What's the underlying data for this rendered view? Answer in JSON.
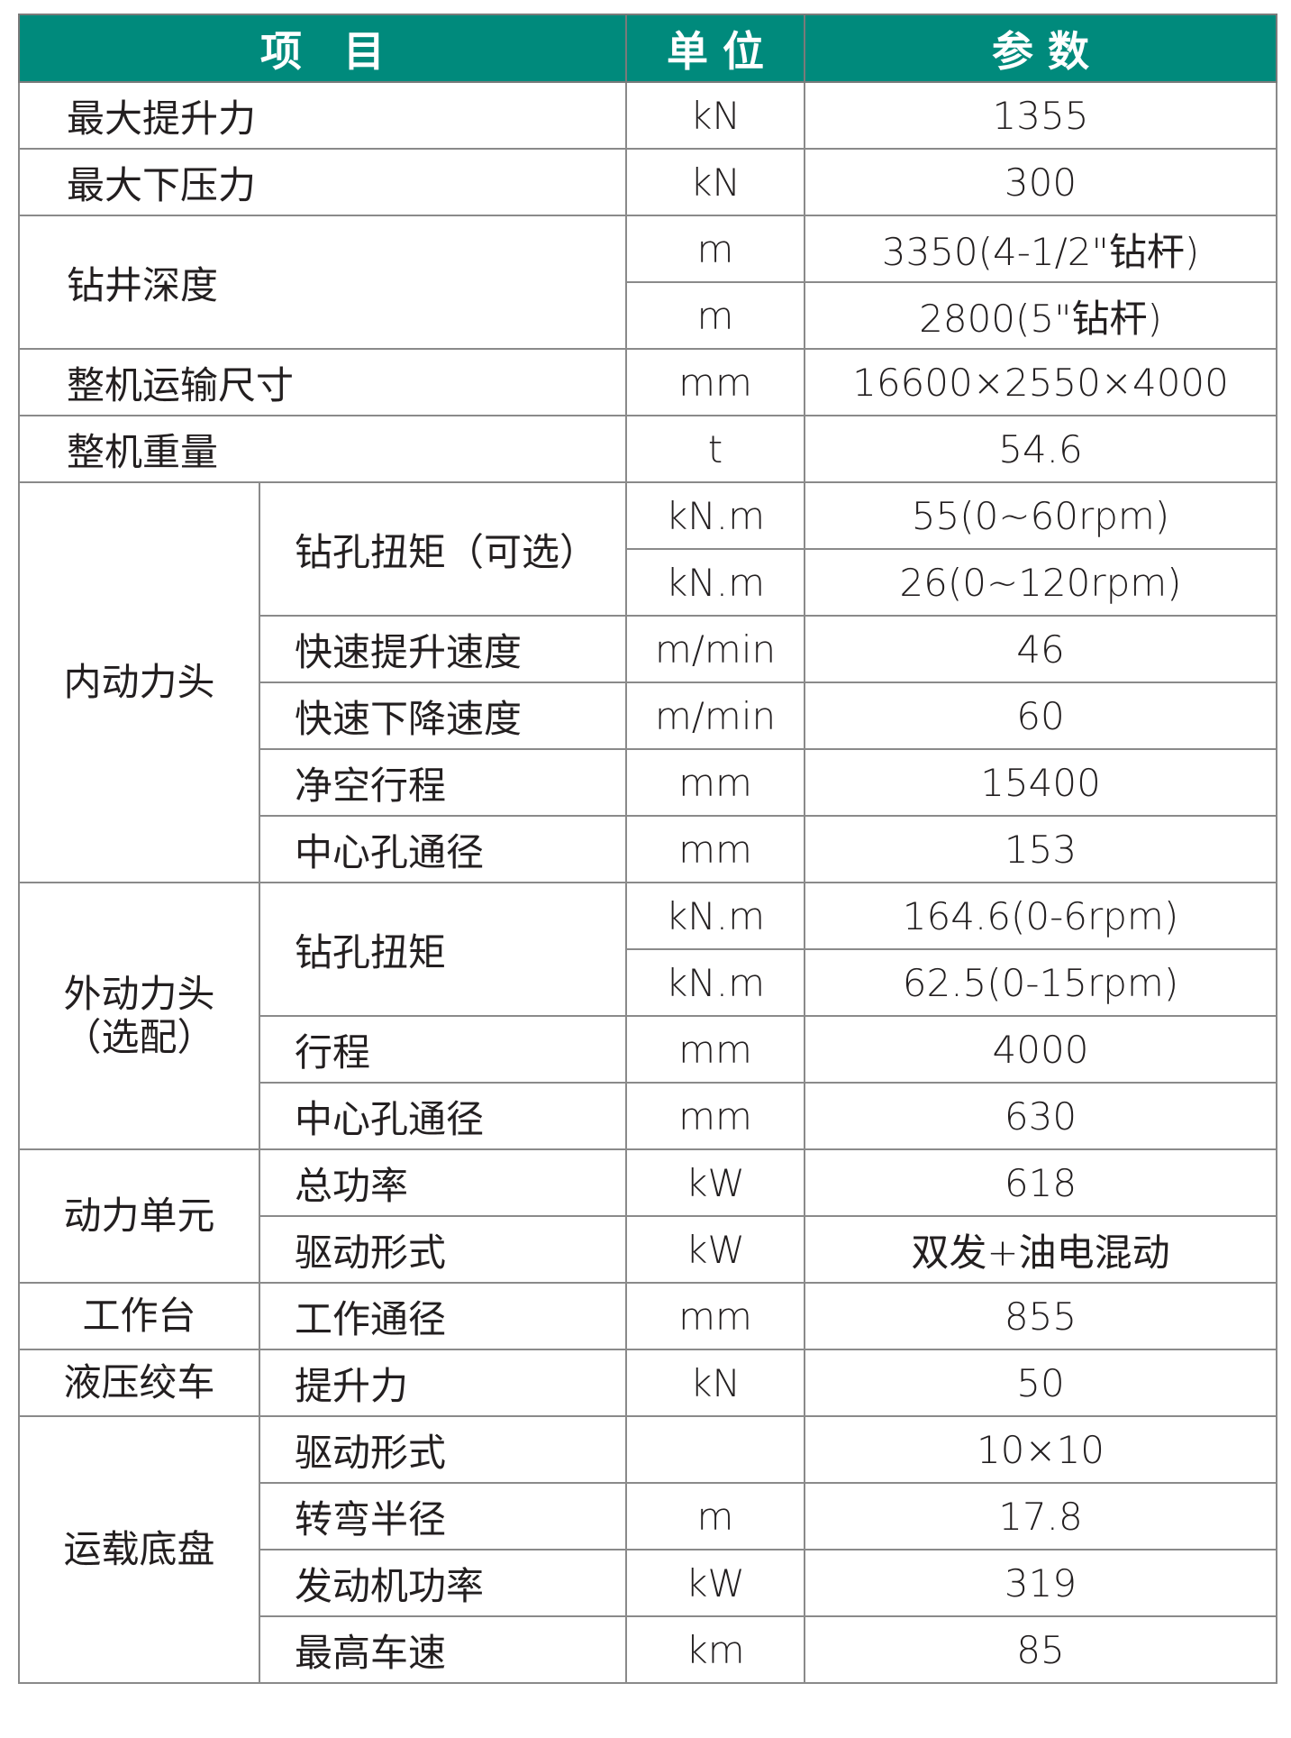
{
  "header": {
    "item": "项　目",
    "unit": "单 位",
    "value": "参 数"
  },
  "colors": {
    "header_bg": "#008a7c",
    "header_text": "#ffffff",
    "border": "#8a8a8a"
  },
  "rows": [
    {
      "item": "最大提升力",
      "entries": [
        {
          "unit": "kN",
          "value": "1355"
        }
      ]
    },
    {
      "item": "最大下压力",
      "entries": [
        {
          "unit": "kN",
          "value": "300"
        }
      ]
    },
    {
      "item": "钻井深度",
      "entries": [
        {
          "unit": "m",
          "value": "3350(4-1/2\"钻杆)"
        },
        {
          "unit": "m",
          "value": "2800(5\"钻杆)"
        }
      ]
    },
    {
      "item": "整机运输尺寸",
      "entries": [
        {
          "unit": "mm",
          "value": "16600×2550×4000"
        }
      ]
    },
    {
      "item": "整机重量",
      "entries": [
        {
          "unit": "t",
          "value": "54.6"
        }
      ]
    }
  ],
  "groups": [
    {
      "name": "内动力头",
      "subs": [
        {
          "item": "钻孔扭矩（可选）",
          "entries": [
            {
              "unit": "kN.m",
              "value": "55(0~60rpm)"
            },
            {
              "unit": "kN.m",
              "value": "26(0~120rpm)"
            }
          ]
        },
        {
          "item": "快速提升速度",
          "entries": [
            {
              "unit": "m/min",
              "value": "46"
            }
          ]
        },
        {
          "item": "快速下降速度",
          "entries": [
            {
              "unit": "m/min",
              "value": "60"
            }
          ]
        },
        {
          "item": "净空行程",
          "entries": [
            {
              "unit": "mm",
              "value": "15400"
            }
          ]
        },
        {
          "item": "中心孔通径",
          "entries": [
            {
              "unit": "mm",
              "value": "153"
            }
          ]
        }
      ]
    },
    {
      "name": "外动力头\n（选配）",
      "subs": [
        {
          "item": "钻孔扭矩",
          "entries": [
            {
              "unit": "kN.m",
              "value": "164.6(0-6rpm)"
            },
            {
              "unit": "kN.m",
              "value": "62.5(0-15rpm)"
            }
          ]
        },
        {
          "item": "行程",
          "entries": [
            {
              "unit": "mm",
              "value": "4000"
            }
          ]
        },
        {
          "item": "中心孔通径",
          "entries": [
            {
              "unit": "mm",
              "value": "630"
            }
          ]
        }
      ]
    },
    {
      "name": "动力单元",
      "subs": [
        {
          "item": "总功率",
          "entries": [
            {
              "unit": "kW",
              "value": "618"
            }
          ]
        },
        {
          "item": "驱动形式",
          "entries": [
            {
              "unit": "kW",
              "value": "双发+油电混动"
            }
          ]
        }
      ]
    },
    {
      "name": "工作台",
      "subs": [
        {
          "item": "工作通径",
          "entries": [
            {
              "unit": "mm",
              "value": "855"
            }
          ]
        }
      ]
    },
    {
      "name": "液压绞车",
      "subs": [
        {
          "item": "提升力",
          "entries": [
            {
              "unit": "kN",
              "value": "50"
            }
          ]
        }
      ]
    },
    {
      "name": "运载底盘",
      "subs": [
        {
          "item": "驱动形式",
          "entries": [
            {
              "unit": "",
              "value": "10×10"
            }
          ]
        },
        {
          "item": "转弯半径",
          "entries": [
            {
              "unit": "m",
              "value": "17.8"
            }
          ]
        },
        {
          "item": "发动机功率",
          "entries": [
            {
              "unit": "kW",
              "value": "319"
            }
          ]
        },
        {
          "item": "最高车速",
          "entries": [
            {
              "unit": "km",
              "value": "85"
            }
          ]
        }
      ]
    }
  ]
}
